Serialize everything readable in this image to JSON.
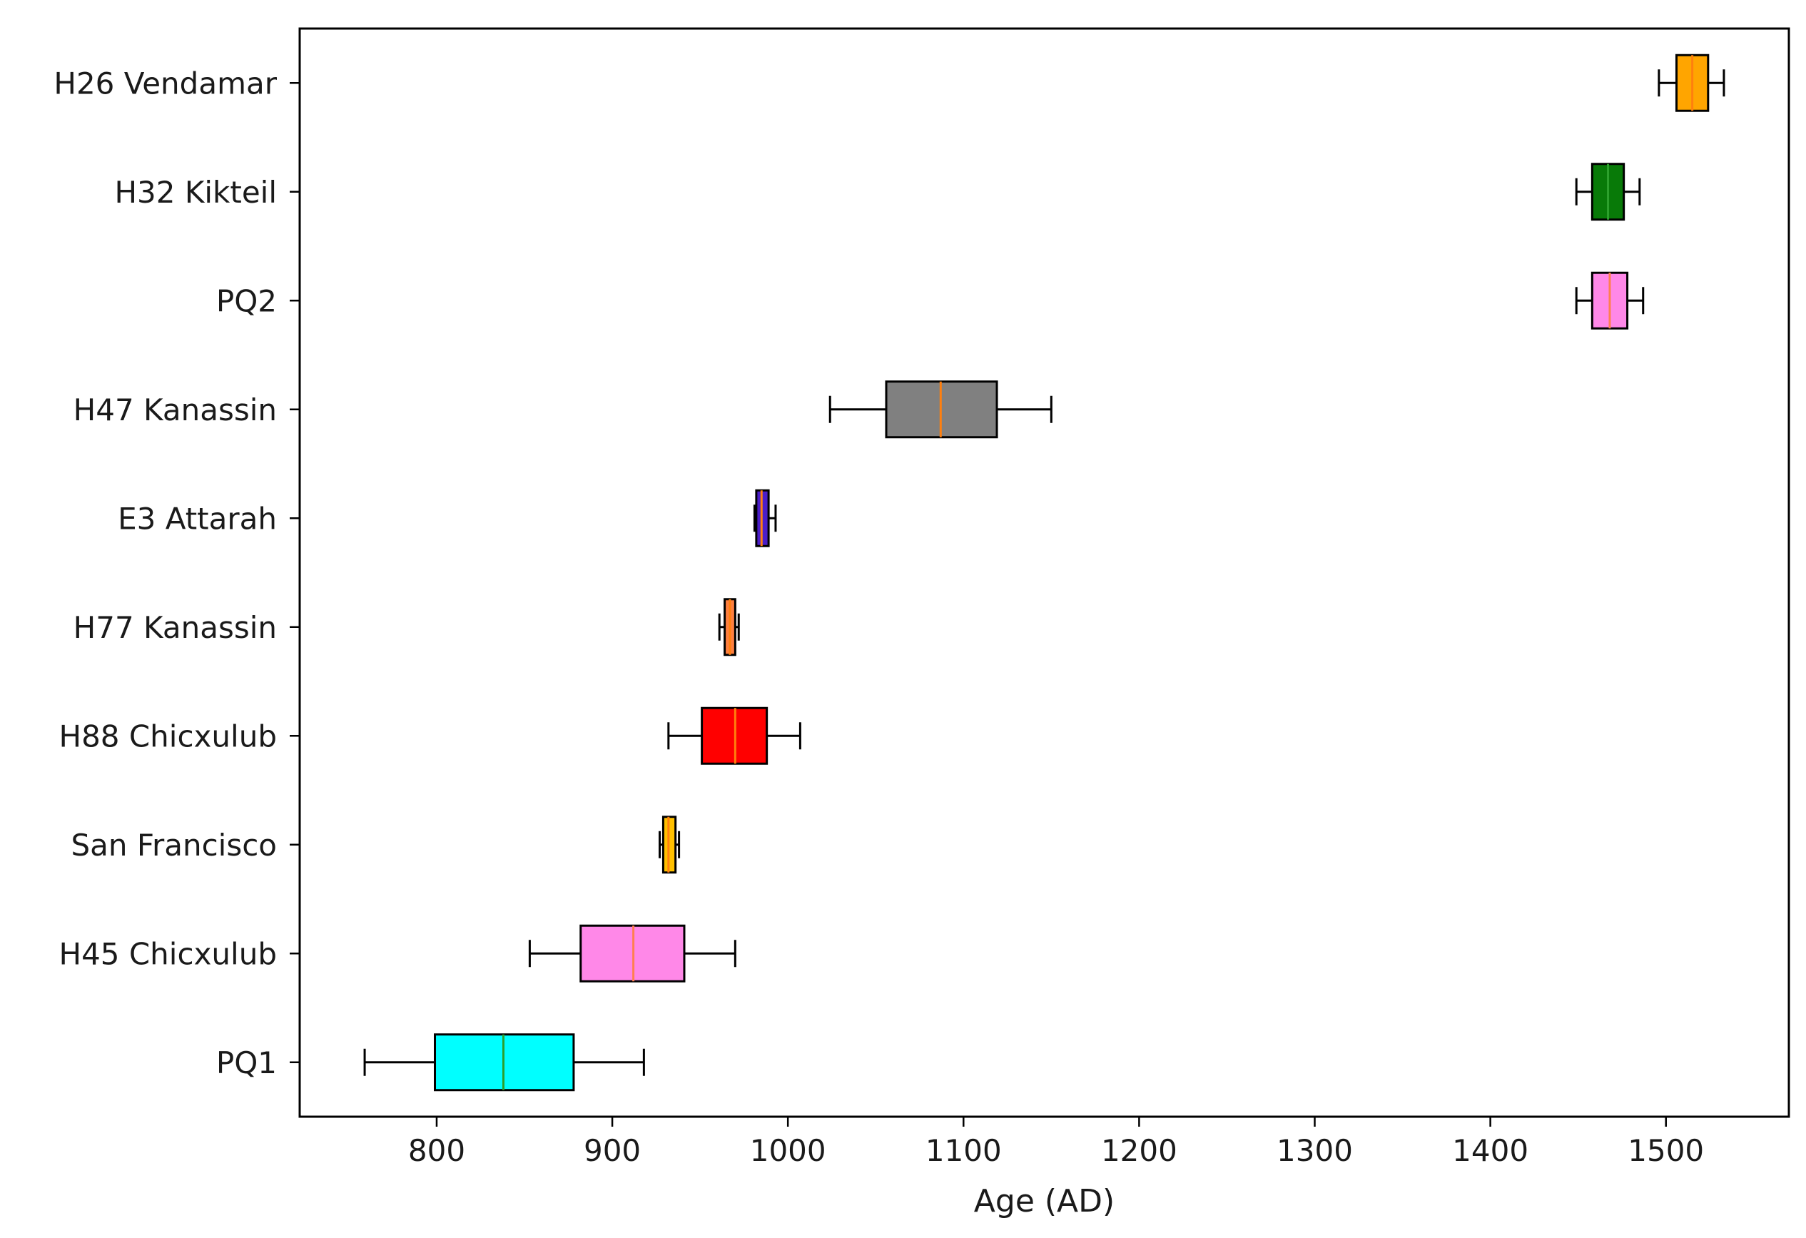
{
  "chart_data": {
    "type": "boxplot",
    "orientation": "horizontal",
    "title": "",
    "xlabel": "Age (AD)",
    "ylabel": "",
    "xlim": [
      722,
      1570
    ],
    "xticks": [
      800,
      900,
      1000,
      1100,
      1200,
      1300,
      1400,
      1500
    ],
    "grid": false,
    "series": [
      {
        "name": "H26 Vendamar",
        "whislo": 1496,
        "q1": 1506,
        "med": 1515,
        "q3": 1524,
        "whishi": 1533,
        "color": "#ffa500",
        "median_color": "#ff7f0e"
      },
      {
        "name": "H32 Kikteil",
        "whislo": 1449,
        "q1": 1458,
        "med": 1467,
        "q3": 1476,
        "whishi": 1485,
        "color": "#087a08",
        "median_color": "#2ca02c"
      },
      {
        "name": "PQ2",
        "whislo": 1449,
        "q1": 1458,
        "med": 1468,
        "q3": 1478,
        "whishi": 1487,
        "color": "#ff88e8",
        "median_color": "#ff7f50"
      },
      {
        "name": "H47 Kanassin",
        "whislo": 1024,
        "q1": 1056,
        "med": 1087,
        "q3": 1119,
        "whishi": 1150,
        "color": "#808080",
        "median_color": "#ff7f0e"
      },
      {
        "name": "E3 Attarah",
        "whislo": 981,
        "q1": 982,
        "med": 985,
        "q3": 989,
        "whishi": 993,
        "color": "#4b1ec8",
        "median_color": "#ff7f0e"
      },
      {
        "name": "H77 Kanassin",
        "whislo": 961,
        "q1": 964,
        "med": 967,
        "q3": 970,
        "whishi": 972,
        "color": "#ff8040",
        "median_color": "#ff7f0e"
      },
      {
        "name": "H88 Chicxulub",
        "whislo": 932,
        "q1": 951,
        "med": 970,
        "q3": 988,
        "whishi": 1007,
        "color": "#ff0000",
        "median_color": "#ff7f0e"
      },
      {
        "name": "San Francisco",
        "whislo": 927,
        "q1": 929,
        "med": 932,
        "q3": 936,
        "whishi": 938,
        "color": "#ffc000",
        "median_color": "#ff7f0e"
      },
      {
        "name": "H45 Chicxulub",
        "whislo": 853,
        "q1": 882,
        "med": 912,
        "q3": 941,
        "whishi": 970,
        "color": "#ff88e8",
        "median_color": "#ff7f50"
      },
      {
        "name": "PQ1",
        "whislo": 759,
        "q1": 799,
        "med": 838,
        "q3": 878,
        "whishi": 918,
        "color": "#00ffff",
        "median_color": "#2ca02c"
      }
    ]
  }
}
